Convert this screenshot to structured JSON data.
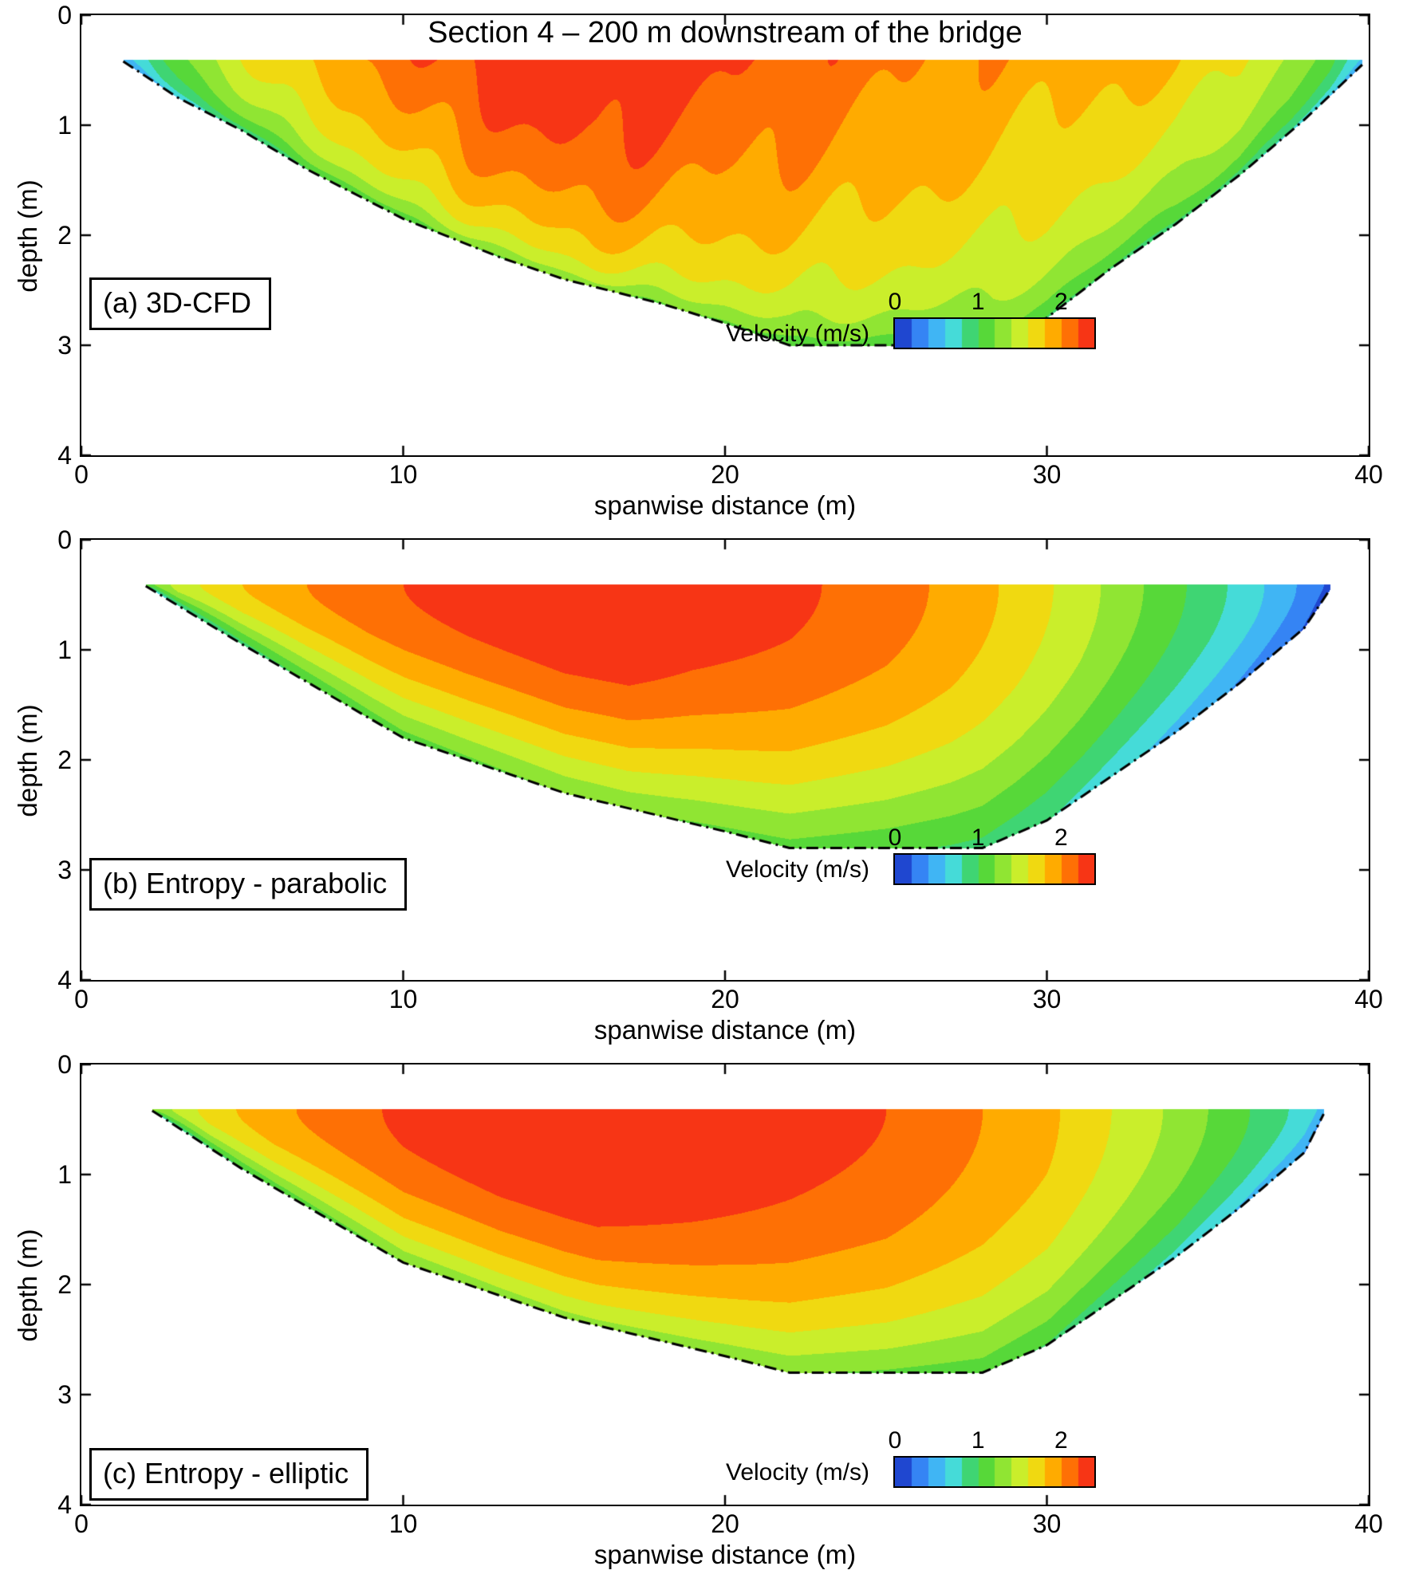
{
  "figure": {
    "title": "Section 4 – 200 m downstream of the bridge",
    "xlabel": "spanwise distance (m)",
    "ylabel": "depth (m)",
    "colorbar_label": "Velocity (m/s)"
  },
  "chart_data": {
    "type": "heatmap",
    "subtype": "filled_contour_cross_section",
    "title": "Section 4 – 200 m downstream of the bridge",
    "xlabel": "spanwise distance (m)",
    "ylabel": "depth (m)",
    "xlim": [
      0,
      40
    ],
    "ylim": [
      0,
      4
    ],
    "y_inverted": true,
    "xticks": [
      0,
      10,
      20,
      30,
      40
    ],
    "yticks": [
      0,
      1,
      2,
      3,
      4
    ],
    "grid": false,
    "water_surface_depth": 0.4,
    "colorbar": {
      "label": "Velocity (m/s)",
      "ticks": [
        0,
        1,
        2
      ],
      "range": [
        0,
        2.4
      ],
      "n_levels": 12,
      "colormap": "jet-like",
      "colors": [
        "#1f47d0",
        "#3c96ff",
        "#46c8f0",
        "#45dbd8",
        "#3fd572",
        "#56d839",
        "#8ee433",
        "#caee2b",
        "#f0d911",
        "#ffab00",
        "#fe7005",
        "#f73515"
      ]
    },
    "panels": [
      {
        "label": "(a) 3D-CFD",
        "profile": "log",
        "noise": 0.05,
        "bed_profile": [
          [
            1.3,
            0.42
          ],
          [
            3,
            0.75
          ],
          [
            5,
            1.05
          ],
          [
            7,
            1.4
          ],
          [
            10,
            1.85
          ],
          [
            13,
            2.2
          ],
          [
            15,
            2.4
          ],
          [
            18,
            2.62
          ],
          [
            20,
            2.8
          ],
          [
            22,
            3.0
          ],
          [
            28.3,
            3.0
          ],
          [
            30,
            2.75
          ],
          [
            32,
            2.3
          ],
          [
            34,
            1.9
          ],
          [
            36,
            1.45
          ],
          [
            38,
            0.95
          ],
          [
            39.8,
            0.45
          ]
        ],
        "surface_velocity": [
          [
            1.3,
            0.5
          ],
          [
            2.5,
            1.0
          ],
          [
            4,
            1.4
          ],
          [
            6,
            1.72
          ],
          [
            8,
            1.95
          ],
          [
            10,
            2.1
          ],
          [
            12,
            2.28
          ],
          [
            14,
            2.38
          ],
          [
            16,
            2.42
          ],
          [
            18,
            2.32
          ],
          [
            20,
            2.22
          ],
          [
            23,
            2.12
          ],
          [
            26,
            2.02
          ],
          [
            29,
            1.92
          ],
          [
            32,
            1.86
          ],
          [
            34,
            1.8
          ],
          [
            36,
            1.62
          ],
          [
            37.5,
            1.38
          ],
          [
            38.8,
            1.05
          ],
          [
            39.8,
            0.6
          ]
        ]
      },
      {
        "label": "(b) Entropy - parabolic",
        "profile": "parabolic",
        "noise": 0,
        "bed_profile": [
          [
            2.0,
            0.42
          ],
          [
            5,
            0.95
          ],
          [
            10,
            1.8
          ],
          [
            15,
            2.3
          ],
          [
            20,
            2.65
          ],
          [
            22,
            2.8
          ],
          [
            28,
            2.8
          ],
          [
            30,
            2.55
          ],
          [
            32,
            2.15
          ],
          [
            34,
            1.75
          ],
          [
            36,
            1.3
          ],
          [
            38,
            0.8
          ],
          [
            38.8,
            0.45
          ]
        ],
        "surface_velocity": [
          [
            2,
            1.1
          ],
          [
            3,
            1.5
          ],
          [
            5,
            1.8
          ],
          [
            7,
            2.0
          ],
          [
            9,
            2.15
          ],
          [
            12,
            2.3
          ],
          [
            15,
            2.42
          ],
          [
            17,
            2.45
          ],
          [
            19,
            2.35
          ],
          [
            22,
            2.25
          ],
          [
            25,
            2.1
          ],
          [
            27,
            1.95
          ],
          [
            29,
            1.75
          ],
          [
            31,
            1.5
          ],
          [
            33,
            1.2
          ],
          [
            35,
            0.9
          ],
          [
            36.5,
            0.65
          ],
          [
            38,
            0.35
          ],
          [
            38.8,
            0.15
          ]
        ]
      },
      {
        "label": "(c) Entropy - elliptic",
        "profile": "elliptic",
        "noise": 0,
        "bed_profile": [
          [
            2.2,
            0.42
          ],
          [
            5,
            0.95
          ],
          [
            10,
            1.8
          ],
          [
            15,
            2.3
          ],
          [
            20,
            2.65
          ],
          [
            22,
            2.8
          ],
          [
            28,
            2.8
          ],
          [
            30,
            2.55
          ],
          [
            32,
            2.15
          ],
          [
            34,
            1.75
          ],
          [
            36,
            1.3
          ],
          [
            38,
            0.8
          ],
          [
            38.6,
            0.45
          ]
        ],
        "surface_velocity": [
          [
            2.2,
            1.25
          ],
          [
            4,
            1.7
          ],
          [
            6,
            1.95
          ],
          [
            8,
            2.1
          ],
          [
            10,
            2.25
          ],
          [
            13,
            2.4
          ],
          [
            16,
            2.48
          ],
          [
            19,
            2.4
          ],
          [
            22,
            2.3
          ],
          [
            25,
            2.2
          ],
          [
            28,
            2.0
          ],
          [
            30,
            1.85
          ],
          [
            32,
            1.6
          ],
          [
            34,
            1.35
          ],
          [
            36,
            1.05
          ],
          [
            37.5,
            0.8
          ],
          [
            38.6,
            0.55
          ]
        ]
      }
    ]
  }
}
